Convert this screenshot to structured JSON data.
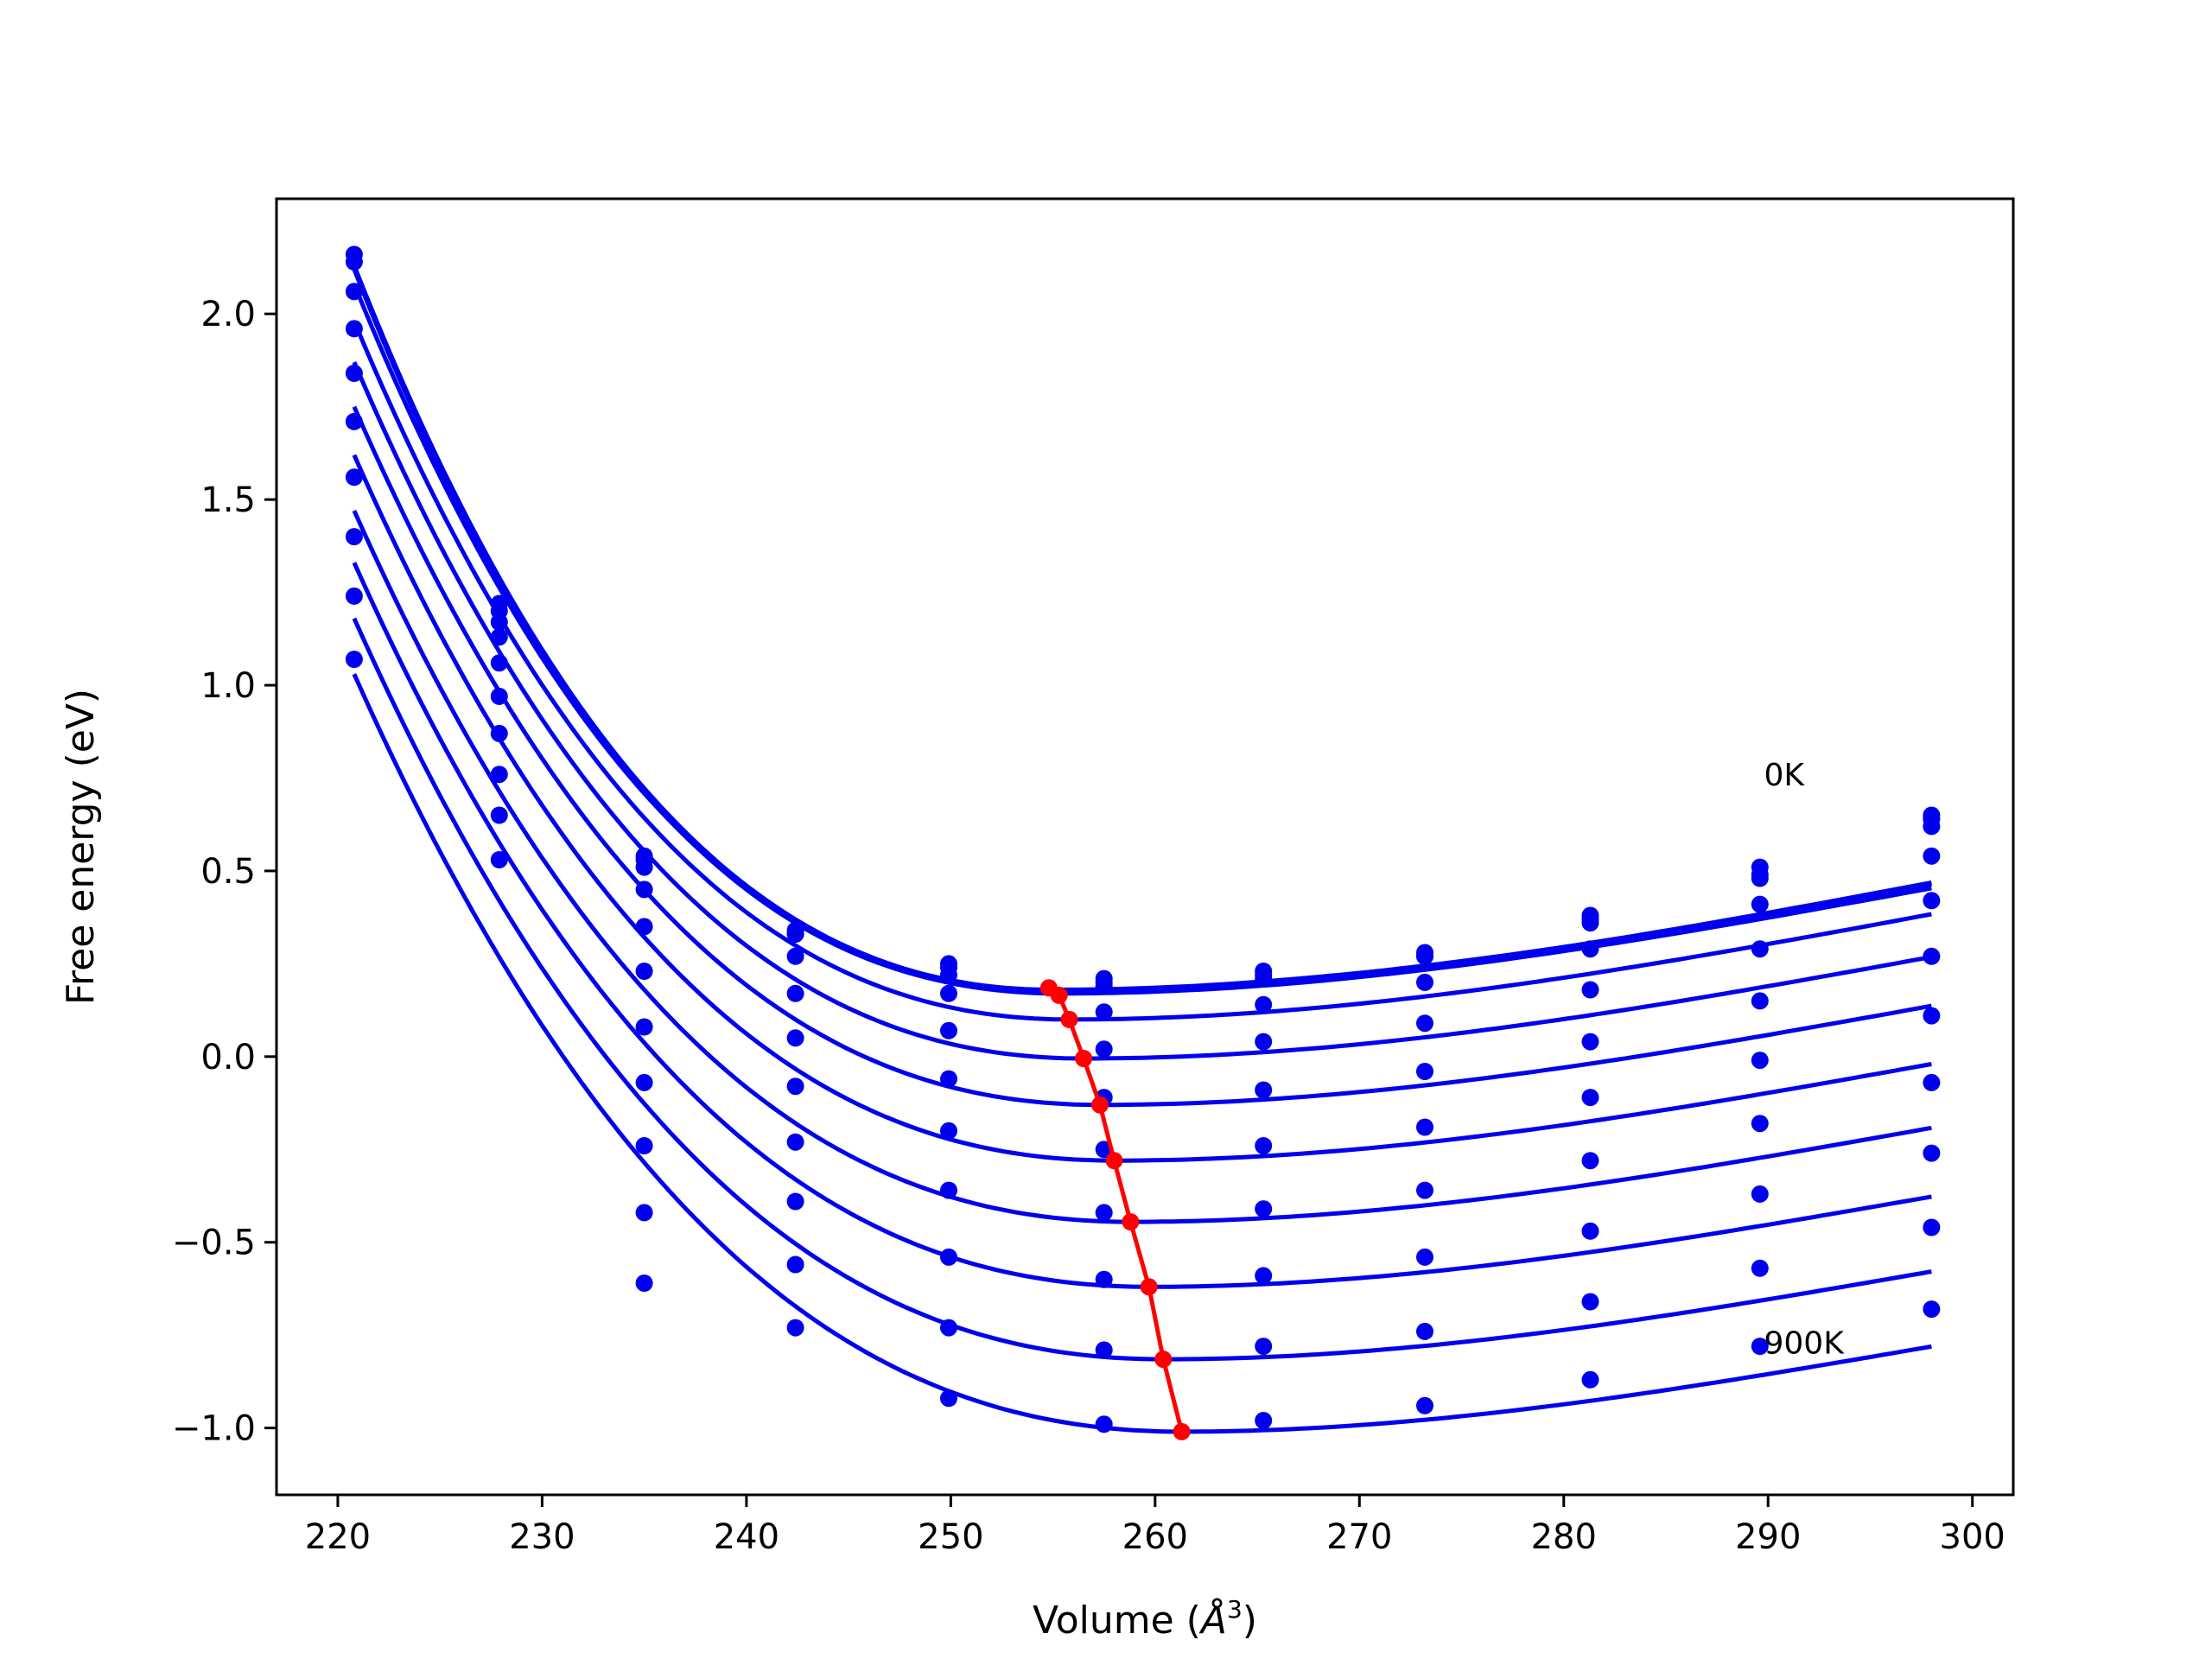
{
  "chart_data": {
    "type": "line",
    "xlabel": "Volume (Å³)",
    "xlabel_parts": {
      "text": "Volume (",
      "symbol": "Å",
      "sup": "3",
      "close": ")"
    },
    "ylabel": "Free energy (eV)",
    "xlim": [
      217,
      302
    ],
    "ylim": [
      -1.18,
      2.31
    ],
    "xticks": [
      220,
      230,
      240,
      250,
      260,
      270,
      280,
      290,
      300
    ],
    "xtick_labels": [
      "220",
      "230",
      "240",
      "250",
      "260",
      "270",
      "280",
      "290",
      "300"
    ],
    "yticks": [
      -1.0,
      -0.5,
      0.0,
      0.5,
      1.0,
      1.5,
      2.0
    ],
    "ytick_labels": [
      "−1.0",
      "−0.5",
      "0.0",
      "0.5",
      "1.0",
      "1.5",
      "2.0"
    ],
    "grid": false,
    "colors": {
      "curves": "#0000ee",
      "minima": "#ff0000"
    },
    "annotations": [
      {
        "text": "0K",
        "x": 289.8,
        "y": 0.73
      },
      {
        "text": "900K",
        "x": 289.8,
        "y": -0.8
      }
    ],
    "volumes": [
      220.8,
      227.9,
      235.0,
      242.4,
      249.9,
      257.5,
      265.3,
      273.2,
      281.3,
      289.6,
      298.0
    ],
    "series": [
      {
        "values": [
          2.16,
          1.22,
          0.54,
          0.34,
          0.25,
          0.21,
          0.23,
          0.28,
          0.37,
          0.49,
          0.65
        ]
      },
      {
        "values": [
          2.14,
          1.2,
          0.53,
          0.33,
          0.24,
          0.2,
          0.22,
          0.27,
          0.36,
          0.48,
          0.64
        ]
      },
      {
        "values": [
          2.06,
          1.17,
          0.51,
          0.33,
          0.22,
          0.19,
          0.21,
          0.27,
          0.38,
          0.51,
          0.62
        ]
      },
      {
        "values": [
          1.96,
          1.13,
          0.45,
          0.27,
          0.17,
          0.12,
          0.14,
          0.2,
          0.29,
          0.41,
          0.54
        ]
      },
      {
        "values": [
          1.84,
          1.06,
          0.35,
          0.17,
          0.07,
          0.02,
          0.04,
          0.09,
          0.18,
          0.29,
          0.42
        ]
      },
      {
        "values": [
          1.71,
          0.97,
          0.23,
          0.05,
          -0.06,
          -0.11,
          -0.09,
          -0.04,
          0.04,
          0.15,
          0.27
        ]
      },
      {
        "values": [
          1.56,
          0.87,
          0.08,
          -0.08,
          -0.2,
          -0.25,
          -0.24,
          -0.19,
          -0.11,
          -0.01,
          0.11
        ]
      },
      {
        "values": [
          1.4,
          0.76,
          -0.07,
          -0.23,
          -0.36,
          -0.42,
          -0.41,
          -0.36,
          -0.28,
          -0.18,
          -0.07
        ]
      },
      {
        "values": [
          1.24,
          0.65,
          -0.24,
          -0.39,
          -0.54,
          -0.6,
          -0.59,
          -0.54,
          -0.47,
          -0.37,
          -0.26
        ]
      },
      {
        "values": [
          1.07,
          0.53,
          -0.42,
          -0.56,
          -0.73,
          -0.79,
          -0.78,
          -0.74,
          -0.66,
          -0.57,
          -0.46
        ]
      },
      {
        "values": [
          null,
          null,
          -0.61,
          -0.73,
          -0.92,
          -0.99,
          -0.98,
          -0.94,
          -0.87,
          -0.78,
          -0.68
        ]
      }
    ],
    "fit_curves": [
      {
        "v0": 254.8,
        "e0": 0.175,
        "left": 2.12,
        "right": 0.61
      },
      {
        "v0": 255.0,
        "e0": 0.18,
        "left": 2.13,
        "right": 0.6
      },
      {
        "v0": 255.3,
        "e0": 0.17,
        "left": 2.08,
        "right": 0.59
      },
      {
        "v0": 255.8,
        "e0": 0.1,
        "left": 1.98,
        "right": 0.52
      },
      {
        "v0": 256.5,
        "e0": -0.005,
        "left": 1.87,
        "right": 0.4
      },
      {
        "v0": 257.3,
        "e0": -0.13,
        "left": 1.75,
        "right": 0.265
      },
      {
        "v0": 258.0,
        "e0": -0.28,
        "left": 1.62,
        "right": 0.105
      },
      {
        "v0": 258.8,
        "e0": -0.445,
        "left": 1.47,
        "right": -0.07
      },
      {
        "v0": 259.7,
        "e0": -0.62,
        "left": 1.33,
        "right": -0.26
      },
      {
        "v0": 260.4,
        "e0": -0.815,
        "left": 1.18,
        "right": -0.465
      },
      {
        "v0": 261.3,
        "e0": -1.01,
        "left": 1.03,
        "right": -0.67
      }
    ],
    "equilibrium": {
      "volumes": [
        254.8,
        255.3,
        255.8,
        256.5,
        257.3,
        258.0,
        258.8,
        259.7,
        260.4,
        261.3
      ],
      "energies": [
        0.185,
        0.165,
        0.1,
        -0.005,
        -0.13,
        -0.28,
        -0.445,
        -0.62,
        -0.815,
        -1.01
      ]
    }
  }
}
